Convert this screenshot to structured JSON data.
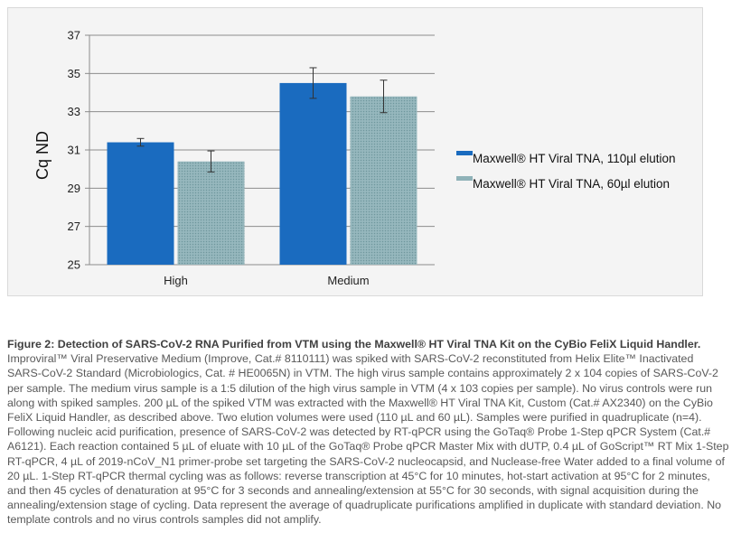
{
  "chart_data": {
    "type": "bar",
    "categories": [
      "High",
      "Medium"
    ],
    "series": [
      {
        "name": "Maxwell® HT Viral TNA, 110µl elution",
        "values": [
          31.4,
          34.5
        ],
        "errors": [
          0.2,
          0.8
        ],
        "color": "#1a6bbf"
      },
      {
        "name": "Maxwell® HT Viral TNA, 60µl elution",
        "values": [
          30.4,
          33.8
        ],
        "errors": [
          0.55,
          0.85
        ],
        "color": "#8fb2b8"
      }
    ],
    "ylabel": "Cq ND",
    "ylim": [
      25,
      37
    ],
    "yticks": [
      "25",
      "27",
      "29",
      "31",
      "33",
      "35",
      "37"
    ],
    "grid": true,
    "legend": "right"
  },
  "caption": {
    "title": "Figure 2: Detection of SARS-CoV-2 RNA Purified from VTM using the Maxwell® HT Viral TNA Kit on the CyBio FeliX Liquid Handler.",
    "body": "Improviral™ Viral Preservative Medium (Improve, Cat.# 8110111) was spiked with SARS-CoV-2  reconstituted from Helix Elite™ Inactivated SARS-CoV-2 Standard (Microbiologics, Cat. # HE0065N) in VTM. The high virus sample contains approximately 2 x 104 copies of SARS-CoV-2 per sample. The medium virus sample is a 1:5 dilution of the high virus sample in VTM (4 x 103 copies per sample). No virus controls were run along with spiked samples. 200 µL of the spiked VTM was extracted with the Maxwell® HT Viral TNA Kit, Custom (Cat.# AX2340) on the CyBio FeliX Liquid Handler, as described above. Two elution volumes were used (110 µL and 60 µL). Samples were purified in quadruplicate (n=4). Following nucleic acid purification, presence of SARS-CoV-2 was detected by RT-qPCR using the GoTaq® Probe 1-Step qPCR System (Cat.# A6121). Each reaction contained 5 µL of eluate with 10 µL of the GoTaq® Probe qPCR Master Mix with dUTP, 0.4 µL of GoScript™ RT Mix 1-Step RT-qPCR, 4 µL of 2019-nCoV_N1 primer-probe set targeting the SARS-CoV-2 nucleocapsid, and Nuclease-free Water added to a final volume of 20 µL. 1-Step RT-qPCR thermal cycling was as follows: reverse transcription at 45°C for 10 minutes, hot-start activation at 95°C for 2 minutes, and then 45 cycles of denaturation at 95°C for 3 seconds and annealing/extension at 55°C for 30 seconds, with signal acquisition during the annealing/extension stage of cycling. Data represent the average of quadruplicate purifications amplified in duplicate with standard deviation. No template controls and no virus controls samples did not amplify."
  }
}
